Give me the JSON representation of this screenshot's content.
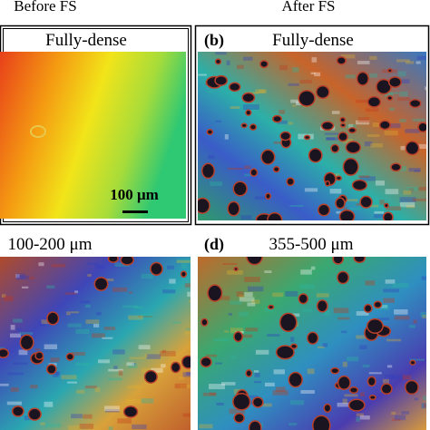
{
  "header": {
    "left": "Before FS",
    "right": "After FS"
  },
  "panels": [
    {
      "title": "Fully-dense",
      "scale_bar": "100 μm"
    },
    {
      "label": "(b)",
      "title": "Fully-dense"
    },
    {
      "title": "100-200 μm"
    },
    {
      "label": "(d)",
      "title": "355-500 μm"
    }
  ]
}
